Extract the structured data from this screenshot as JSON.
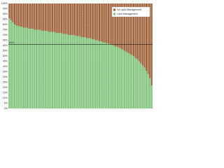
{
  "chart_data": {
    "type": "stacked_bar_100",
    "categories": [
      null,
      null,
      null,
      null,
      null,
      null,
      null,
      null,
      null,
      null,
      null,
      null,
      null,
      null,
      null,
      null,
      null,
      null,
      null,
      null,
      null,
      null,
      null,
      null,
      null,
      null,
      null,
      null,
      null,
      null,
      null,
      null,
      null,
      null,
      null,
      null,
      null,
      null,
      null,
      null,
      null,
      null,
      null,
      null,
      null,
      null,
      null,
      null,
      null,
      null,
      null,
      null,
      null,
      null,
      null,
      null,
      null,
      null,
      null,
      null,
      null,
      null,
      null,
      null,
      null,
      null,
      null,
      null,
      null,
      null,
      null,
      null,
      null,
      null,
      null,
      null,
      null,
      null,
      null,
      null
    ],
    "series": [
      {
        "name": "Lipid Management",
        "color": "#7cc576",
        "values": [
          86,
          84,
          82,
          80,
          79,
          79,
          78,
          78,
          77,
          77,
          77,
          76,
          76,
          76,
          75,
          75,
          75,
          75,
          74,
          74,
          74,
          74,
          73,
          73,
          73,
          73,
          72,
          72,
          72,
          72,
          71,
          71,
          71,
          70,
          70,
          70,
          70,
          69,
          69,
          69,
          68,
          68,
          68,
          67,
          67,
          67,
          66,
          66,
          65,
          65,
          64,
          64,
          63,
          63,
          62,
          62,
          61,
          61,
          60,
          59,
          59,
          58,
          57,
          56,
          55,
          54,
          53,
          52,
          51,
          50,
          48,
          47,
          45,
          43,
          41,
          39,
          36,
          33,
          29,
          22
        ]
      },
      {
        "name": "No Lipid Management",
        "color": "#9c5a2e",
        "values": [
          14,
          16,
          18,
          20,
          21,
          21,
          22,
          22,
          23,
          23,
          23,
          24,
          24,
          24,
          25,
          25,
          25,
          25,
          26,
          26,
          26,
          26,
          27,
          27,
          27,
          27,
          28,
          28,
          28,
          28,
          29,
          29,
          29,
          30,
          30,
          30,
          30,
          31,
          31,
          31,
          32,
          32,
          32,
          33,
          33,
          33,
          34,
          34,
          35,
          35,
          36,
          36,
          37,
          37,
          38,
          38,
          39,
          39,
          40,
          41,
          41,
          42,
          43,
          44,
          45,
          46,
          47,
          48,
          49,
          50,
          52,
          53,
          55,
          57,
          59,
          61,
          64,
          67,
          71,
          78
        ]
      }
    ],
    "ylim": [
      0,
      100
    ],
    "yticks": [
      {
        "value": 0,
        "label": "0%"
      },
      {
        "value": 5,
        "label": "5%"
      },
      {
        "value": 10,
        "label": "10%"
      },
      {
        "value": 15,
        "label": "15%"
      },
      {
        "value": 20,
        "label": "20%"
      },
      {
        "value": 25,
        "label": "25%"
      },
      {
        "value": 30,
        "label": "30%"
      },
      {
        "value": 35,
        "label": "35%"
      },
      {
        "value": 40,
        "label": "40%"
      },
      {
        "value": 45,
        "label": "45%"
      },
      {
        "value": 50,
        "label": "50%"
      },
      {
        "value": 55,
        "label": "55%"
      },
      {
        "value": 60,
        "label": "60%"
      },
      {
        "value": 65,
        "label": "65%"
      },
      {
        "value": 70,
        "label": "70%"
      },
      {
        "value": 75,
        "label": "75%"
      },
      {
        "value": 80,
        "label": "80%"
      },
      {
        "value": 85,
        "label": "85%"
      },
      {
        "value": 90,
        "label": "90%"
      },
      {
        "value": 95,
        "label": "95%"
      },
      {
        "value": 100,
        "label": "100%"
      }
    ],
    "reference_line": {
      "value": 61,
      "label": "61%"
    },
    "grid": true,
    "legend": "top-right"
  }
}
